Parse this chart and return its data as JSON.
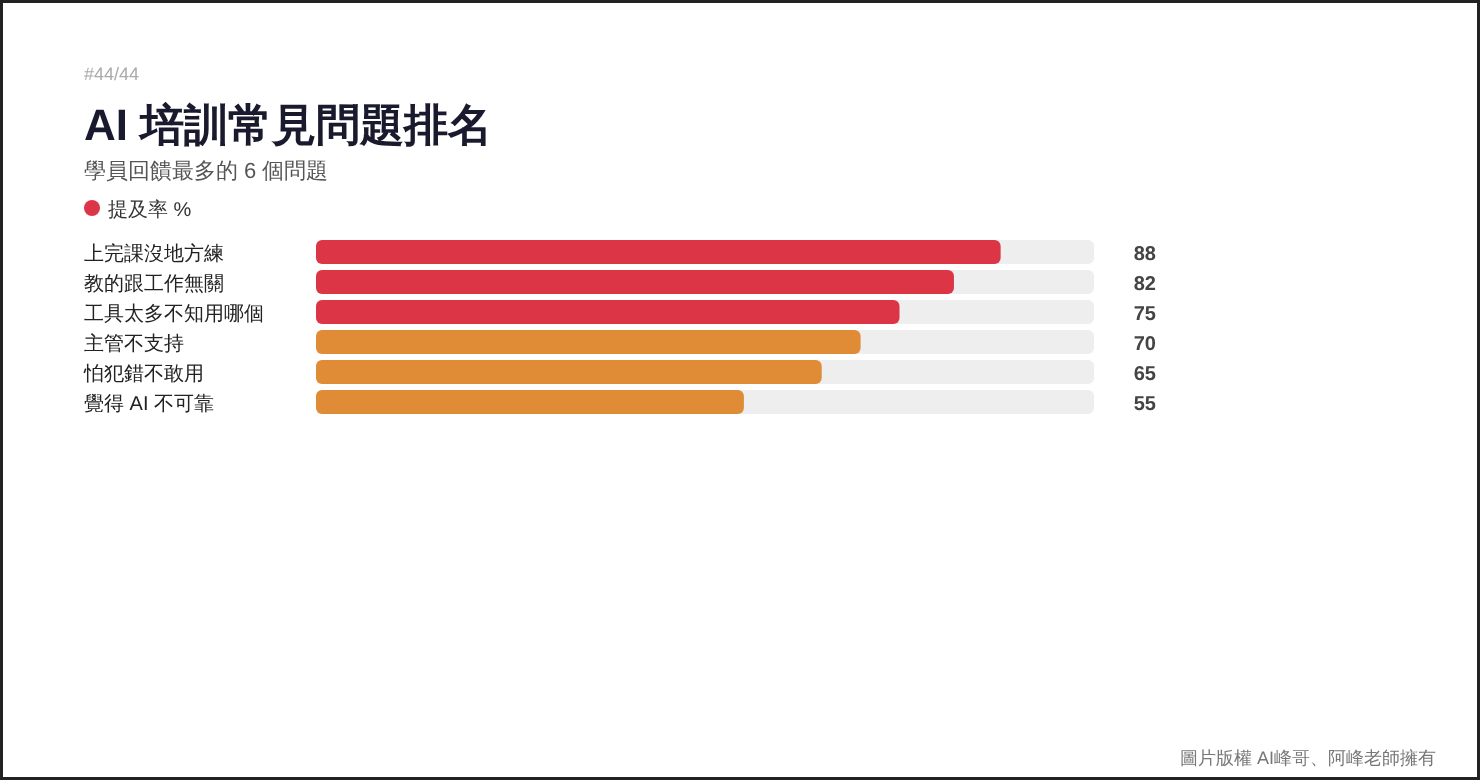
{
  "chart_data": {
    "type": "bar",
    "orientation": "horizontal",
    "title": "AI 培訓常見問題排名",
    "subtitle": "學員回饋最多的 6 個問題",
    "annotations": [
      "#44/44",
      "圖片版權 AI峰哥、阿峰老師擁有"
    ],
    "categories": [
      "上完課沒地方練",
      "教的跟工作無關",
      "工具太多不知用哪個",
      "主管不支持",
      "怕犯錯不敢用",
      "覺得 AI 不可靠"
    ],
    "series": [
      {
        "name": "提及率 %",
        "color": "#dc3545",
        "values": [
          88,
          82,
          75,
          70,
          65,
          55
        ],
        "colors": [
          "#dc3545",
          "#dc3545",
          "#dc3545",
          "#e08b35",
          "#e08b35",
          "#e08b35"
        ]
      }
    ],
    "xlim": [
      0,
      100
    ],
    "data_labels": true,
    "legend": "top left",
    "grid": false
  }
}
